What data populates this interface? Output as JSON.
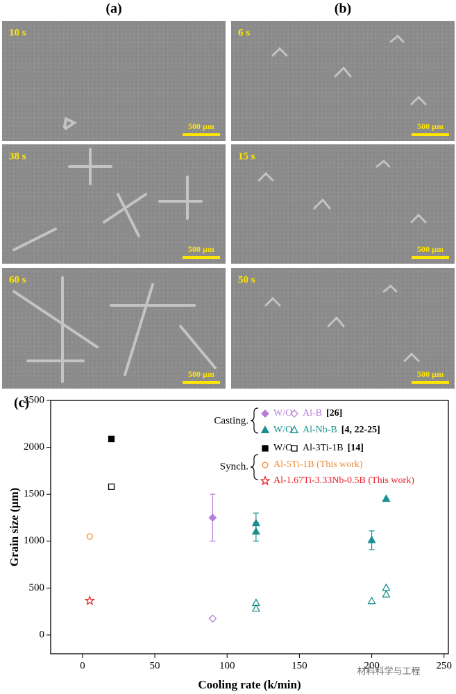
{
  "panels": [
    {
      "label": "(a)",
      "images": [
        {
          "time": "10 s",
          "scale": "500 µm"
        },
        {
          "time": "38 s",
          "scale": "500 µm"
        },
        {
          "time": "60 s",
          "scale": "500 µm"
        }
      ]
    },
    {
      "label": "(b)",
      "images": [
        {
          "time": "6 s",
          "scale": "500 µm"
        },
        {
          "time": "15 s",
          "scale": "500 µm"
        },
        {
          "time": "50 s",
          "scale": "500 µm"
        }
      ]
    }
  ],
  "chart_data": {
    "type": "scatter",
    "label": "(c)",
    "x_label": "Cooling rate (k/min)",
    "y_label": "Grain size (µm)",
    "xlim": [
      -22,
      253
    ],
    "xticks": [
      0,
      50,
      100,
      150,
      200,
      250
    ],
    "ylim": [
      -200,
      2500
    ],
    "yticks": [
      0,
      500,
      1000,
      1500,
      2000,
      2500
    ],
    "groups": [
      "Casting.",
      "Synch."
    ],
    "series": [
      {
        "name": "W/O",
        "color": "#b57edc",
        "marker": "diamond",
        "filled": true,
        "x": [
          90
        ],
        "values": [
          1250
        ],
        "errors": [
          250
        ]
      },
      {
        "name": "Al-B",
        "ref": "[26]",
        "color": "#b57edc",
        "marker": "diamond",
        "filled": false,
        "x": [
          90
        ],
        "values": [
          175
        ]
      },
      {
        "name": "W/O",
        "color": "#1a8f8f",
        "marker": "triangle",
        "filled": true,
        "x": [
          120,
          120,
          200,
          210
        ],
        "values": [
          1190,
          1100,
          1010,
          1450
        ],
        "errors": [
          110,
          100,
          100,
          null
        ]
      },
      {
        "name": "Al-Nb-B",
        "ref": "[4, 22-25]",
        "color": "#1a8f8f",
        "marker": "triangle",
        "filled": false,
        "x": [
          120,
          120,
          200,
          210,
          210
        ],
        "values": [
          340,
          280,
          360,
          500,
          430
        ]
      },
      {
        "name": "W/O",
        "color": "#000000",
        "marker": "square",
        "filled": true,
        "x": [
          20
        ],
        "values": [
          2090
        ]
      },
      {
        "name": "Al-3Ti-1B",
        "ref": "[14]",
        "color": "#000000",
        "marker": "square",
        "filled": false,
        "x": [
          20
        ],
        "values": [
          1580
        ]
      },
      {
        "name": "Al-5Ti-1B (This work)",
        "color": "#f08a30",
        "marker": "circle",
        "filled": false,
        "x": [
          5
        ],
        "values": [
          1050
        ]
      },
      {
        "name": "Al-1.67Ti-3.33Nb-0.5B (This work)",
        "color": "#e8202a",
        "marker": "star",
        "filled": false,
        "x": [
          5
        ],
        "values": [
          365
        ]
      }
    ]
  },
  "watermark": "材料科学与工程"
}
